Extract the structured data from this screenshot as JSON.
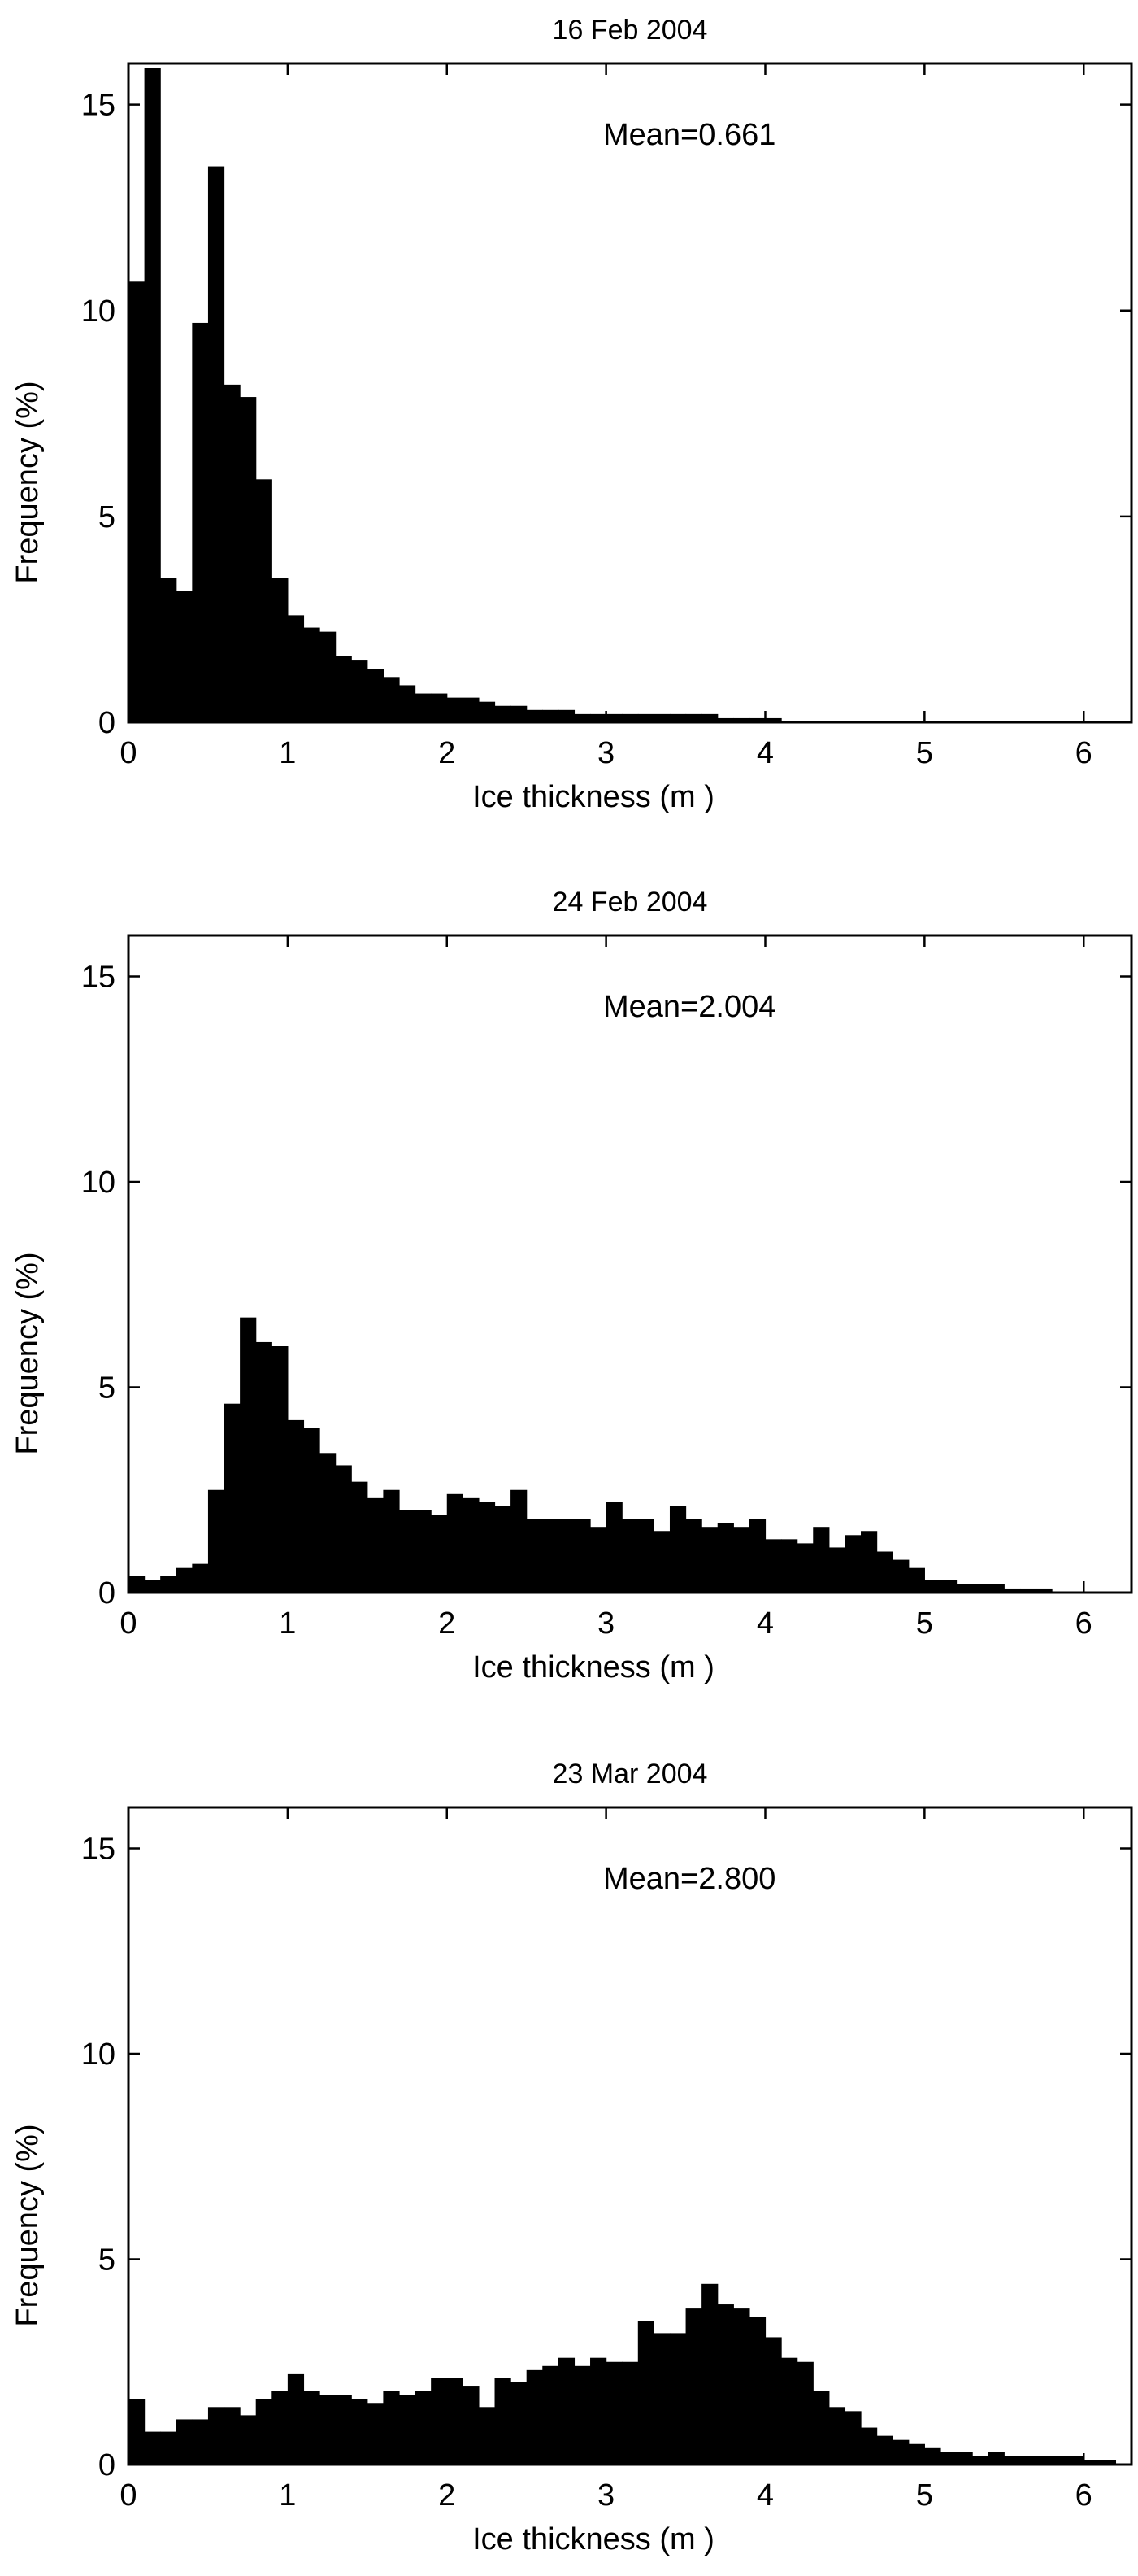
{
  "chart_data": [
    {
      "type": "bar",
      "title": "16 Feb 2004",
      "annotation": "Mean=0.661",
      "xlabel": "Ice thickness (m )",
      "ylabel": "Frequency (%)",
      "xlim": [
        0,
        6.3
      ],
      "ylim": [
        0,
        16
      ],
      "xticks": [
        "0",
        "1",
        "2",
        "3",
        "4",
        "5",
        "6"
      ],
      "yticks": [
        "0",
        "5",
        "10",
        "15"
      ],
      "bin_width": 0.1,
      "x": [
        0.05,
        0.15,
        0.25,
        0.35,
        0.45,
        0.55,
        0.65,
        0.75,
        0.85,
        0.95,
        1.05,
        1.15,
        1.25,
        1.35,
        1.45,
        1.55,
        1.65,
        1.75,
        1.85,
        1.95,
        2.05,
        2.15,
        2.25,
        2.35,
        2.45,
        2.55,
        2.65,
        2.75,
        2.85,
        2.95,
        3.05,
        3.15,
        3.25,
        3.35,
        3.45,
        3.55,
        3.65,
        3.75,
        3.85,
        3.95,
        4.05
      ],
      "values": [
        10.7,
        15.9,
        3.5,
        3.2,
        9.7,
        13.5,
        8.2,
        7.9,
        5.9,
        3.5,
        2.6,
        2.3,
        2.2,
        1.6,
        1.5,
        1.3,
        1.1,
        0.9,
        0.7,
        0.7,
        0.6,
        0.6,
        0.5,
        0.4,
        0.4,
        0.3,
        0.3,
        0.3,
        0.2,
        0.2,
        0.2,
        0.2,
        0.2,
        0.2,
        0.2,
        0.2,
        0.2,
        0.1,
        0.1,
        0.1,
        0.1
      ]
    },
    {
      "type": "bar",
      "title": "24 Feb 2004",
      "annotation": "Mean=2.004",
      "xlabel": "Ice thickness (m )",
      "ylabel": "Frequency (%)",
      "xlim": [
        0,
        6.3
      ],
      "ylim": [
        0,
        16
      ],
      "xticks": [
        "0",
        "1",
        "2",
        "3",
        "4",
        "5",
        "6"
      ],
      "yticks": [
        "0",
        "5",
        "10",
        "15"
      ],
      "bin_width": 0.1,
      "x": [
        0.05,
        0.15,
        0.25,
        0.35,
        0.45,
        0.55,
        0.65,
        0.75,
        0.85,
        0.95,
        1.05,
        1.15,
        1.25,
        1.35,
        1.45,
        1.55,
        1.65,
        1.75,
        1.85,
        1.95,
        2.05,
        2.15,
        2.25,
        2.35,
        2.45,
        2.55,
        2.65,
        2.75,
        2.85,
        2.95,
        3.05,
        3.15,
        3.25,
        3.35,
        3.45,
        3.55,
        3.65,
        3.75,
        3.85,
        3.95,
        4.05,
        4.15,
        4.25,
        4.35,
        4.45,
        4.55,
        4.65,
        4.75,
        4.85,
        4.95,
        5.05,
        5.15,
        5.25,
        5.35,
        5.45,
        5.55,
        5.65,
        5.75
      ],
      "values": [
        0.4,
        0.3,
        0.4,
        0.6,
        0.7,
        2.5,
        4.6,
        6.7,
        6.1,
        6.0,
        4.2,
        4.0,
        3.4,
        3.1,
        2.7,
        2.3,
        2.5,
        2.0,
        2.0,
        1.9,
        2.4,
        2.3,
        2.2,
        2.1,
        2.5,
        1.8,
        1.8,
        1.8,
        1.8,
        1.6,
        2.2,
        1.8,
        1.8,
        1.5,
        2.1,
        1.8,
        1.6,
        1.7,
        1.6,
        1.8,
        1.3,
        1.3,
        1.2,
        1.6,
        1.1,
        1.4,
        1.5,
        1.0,
        0.8,
        0.6,
        0.3,
        0.3,
        0.2,
        0.2,
        0.2,
        0.1,
        0.1,
        0.1
      ]
    },
    {
      "type": "bar",
      "title": "23 Mar 2004",
      "annotation": "Mean=2.800",
      "xlabel": "Ice thickness (m )",
      "ylabel": "Frequency (%)",
      "xlim": [
        0,
        6.3
      ],
      "ylim": [
        0,
        16
      ],
      "xticks": [
        "0",
        "1",
        "2",
        "3",
        "4",
        "5",
        "6"
      ],
      "yticks": [
        "0",
        "5",
        "10",
        "15"
      ],
      "bin_width": 0.1,
      "x": [
        0.05,
        0.15,
        0.25,
        0.35,
        0.45,
        0.55,
        0.65,
        0.75,
        0.85,
        0.95,
        1.05,
        1.15,
        1.25,
        1.35,
        1.45,
        1.55,
        1.65,
        1.75,
        1.85,
        1.95,
        2.05,
        2.15,
        2.25,
        2.35,
        2.45,
        2.55,
        2.65,
        2.75,
        2.85,
        2.95,
        3.05,
        3.15,
        3.25,
        3.35,
        3.45,
        3.55,
        3.65,
        3.75,
        3.85,
        3.95,
        4.05,
        4.15,
        4.25,
        4.35,
        4.45,
        4.55,
        4.65,
        4.75,
        4.85,
        4.95,
        5.05,
        5.15,
        5.25,
        5.35,
        5.45,
        5.55,
        5.65,
        5.75,
        5.85,
        5.95,
        6.05,
        6.15
      ],
      "values": [
        1.6,
        0.8,
        0.8,
        1.1,
        1.1,
        1.4,
        1.4,
        1.2,
        1.6,
        1.8,
        2.2,
        1.8,
        1.7,
        1.7,
        1.6,
        1.5,
        1.8,
        1.7,
        1.8,
        2.1,
        2.1,
        1.9,
        1.4,
        2.1,
        2.0,
        2.3,
        2.4,
        2.6,
        2.4,
        2.6,
        2.5,
        2.5,
        3.5,
        3.2,
        3.2,
        3.8,
        4.4,
        3.9,
        3.8,
        3.6,
        3.1,
        2.6,
        2.5,
        1.8,
        1.4,
        1.3,
        0.9,
        0.7,
        0.6,
        0.5,
        0.4,
        0.3,
        0.3,
        0.2,
        0.3,
        0.2,
        0.2,
        0.2,
        0.2,
        0.2,
        0.1,
        0.1
      ]
    }
  ]
}
